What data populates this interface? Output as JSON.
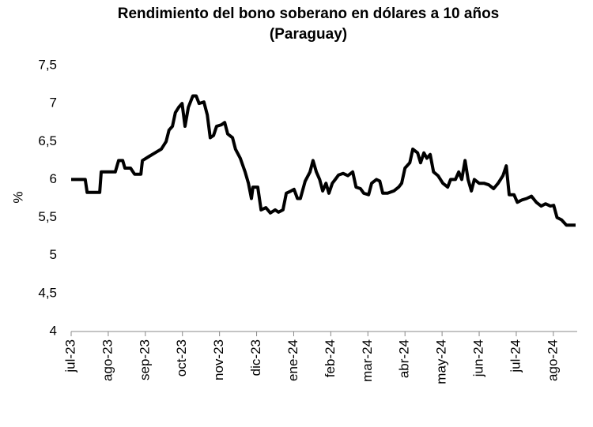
{
  "chart_data": {
    "type": "line",
    "title": [
      "Rendimiento del bono soberano en dólares a 10 años",
      "(Paraguay)"
    ],
    "y_label": "%",
    "xlim": [
      0,
      13.6
    ],
    "xticks": [
      {
        "value": 0,
        "label": "jul-23"
      },
      {
        "value": 1,
        "label": "ago-23"
      },
      {
        "value": 2,
        "label": "sep-23"
      },
      {
        "value": 3,
        "label": "oct-23"
      },
      {
        "value": 4,
        "label": "nov-23"
      },
      {
        "value": 5,
        "label": "dic-23"
      },
      {
        "value": 6,
        "label": "ene-24"
      },
      {
        "value": 7,
        "label": "feb-24"
      },
      {
        "value": 8,
        "label": "mar-24"
      },
      {
        "value": 9,
        "label": "abr-24"
      },
      {
        "value": 10,
        "label": "may-24"
      },
      {
        "value": 11,
        "label": "jun-24"
      },
      {
        "value": 12,
        "label": "jul-24"
      },
      {
        "value": 13,
        "label": "ago-24"
      }
    ],
    "ylim": [
      4,
      7.5
    ],
    "yticks": [
      4,
      {
        "value": 4.5,
        "label": "4,5"
      },
      5,
      {
        "value": 5.5,
        "label": "5,5"
      },
      6,
      {
        "value": 6.5,
        "label": "6,5"
      },
      7,
      {
        "value": 7.5,
        "label": "7,5"
      }
    ],
    "grid": false,
    "color": "#000000",
    "x": [
      0,
      0.38,
      0.43,
      0.77,
      0.81,
      1.19,
      1.28,
      1.39,
      1.45,
      1.6,
      1.71,
      1.88,
      1.92,
      2.09,
      2.26,
      2.43,
      2.56,
      2.64,
      2.73,
      2.81,
      2.9,
      2.99,
      3.07,
      3.16,
      3.28,
      3.37,
      3.45,
      3.58,
      3.67,
      3.75,
      3.84,
      3.92,
      4.05,
      4.14,
      4.22,
      4.35,
      4.43,
      4.56,
      4.69,
      4.78,
      4.86,
      4.9,
      5.03,
      5.12,
      5.25,
      5.37,
      5.5,
      5.59,
      5.71,
      5.8,
      5.93,
      6.01,
      6.1,
      6.18,
      6.31,
      6.44,
      6.52,
      6.61,
      6.7,
      6.78,
      6.87,
      6.95,
      7.04,
      7.12,
      7.21,
      7.33,
      7.46,
      7.59,
      7.68,
      7.8,
      7.89,
      8.02,
      8.1,
      8.23,
      8.32,
      8.4,
      8.53,
      8.7,
      8.83,
      8.91,
      9.0,
      9.13,
      9.21,
      9.34,
      9.42,
      9.51,
      9.59,
      9.68,
      9.77,
      9.89,
      10.02,
      10.15,
      10.23,
      10.36,
      10.45,
      10.53,
      10.62,
      10.7,
      10.79,
      10.87,
      11.0,
      11.13,
      11.26,
      11.39,
      11.51,
      11.64,
      11.73,
      11.81,
      11.94,
      12.03,
      12.15,
      12.28,
      12.41,
      12.54,
      12.67,
      12.79,
      12.92,
      13.01,
      13.1,
      13.22,
      13.35,
      13.48,
      13.6
    ],
    "values": [
      6.0,
      6.0,
      5.83,
      5.83,
      6.1,
      6.1,
      6.25,
      6.25,
      6.15,
      6.15,
      6.07,
      6.07,
      6.25,
      6.3,
      6.35,
      6.4,
      6.5,
      6.65,
      6.7,
      6.88,
      6.95,
      7.0,
      6.7,
      6.95,
      7.1,
      7.1,
      7.0,
      7.02,
      6.85,
      6.55,
      6.58,
      6.7,
      6.72,
      6.75,
      6.6,
      6.55,
      6.4,
      6.28,
      6.1,
      5.95,
      5.75,
      5.9,
      5.9,
      5.6,
      5.63,
      5.56,
      5.6,
      5.57,
      5.6,
      5.82,
      5.85,
      5.87,
      5.75,
      5.75,
      5.98,
      6.1,
      6.25,
      6.1,
      6.0,
      5.85,
      5.95,
      5.82,
      5.95,
      6.0,
      6.06,
      6.08,
      6.05,
      6.1,
      5.9,
      5.88,
      5.82,
      5.8,
      5.95,
      6.0,
      5.98,
      5.82,
      5.82,
      5.85,
      5.9,
      5.95,
      6.15,
      6.22,
      6.4,
      6.35,
      6.22,
      6.35,
      6.28,
      6.33,
      6.1,
      6.05,
      5.95,
      5.9,
      6.0,
      6.0,
      6.1,
      6.0,
      6.25,
      6.0,
      5.85,
      6.0,
      5.95,
      5.95,
      5.93,
      5.88,
      5.95,
      6.05,
      6.18,
      5.8,
      5.8,
      5.7,
      5.73,
      5.75,
      5.78,
      5.7,
      5.65,
      5.68,
      5.65,
      5.66,
      5.5,
      5.47,
      5.4,
      5.4,
      5.4
    ]
  }
}
